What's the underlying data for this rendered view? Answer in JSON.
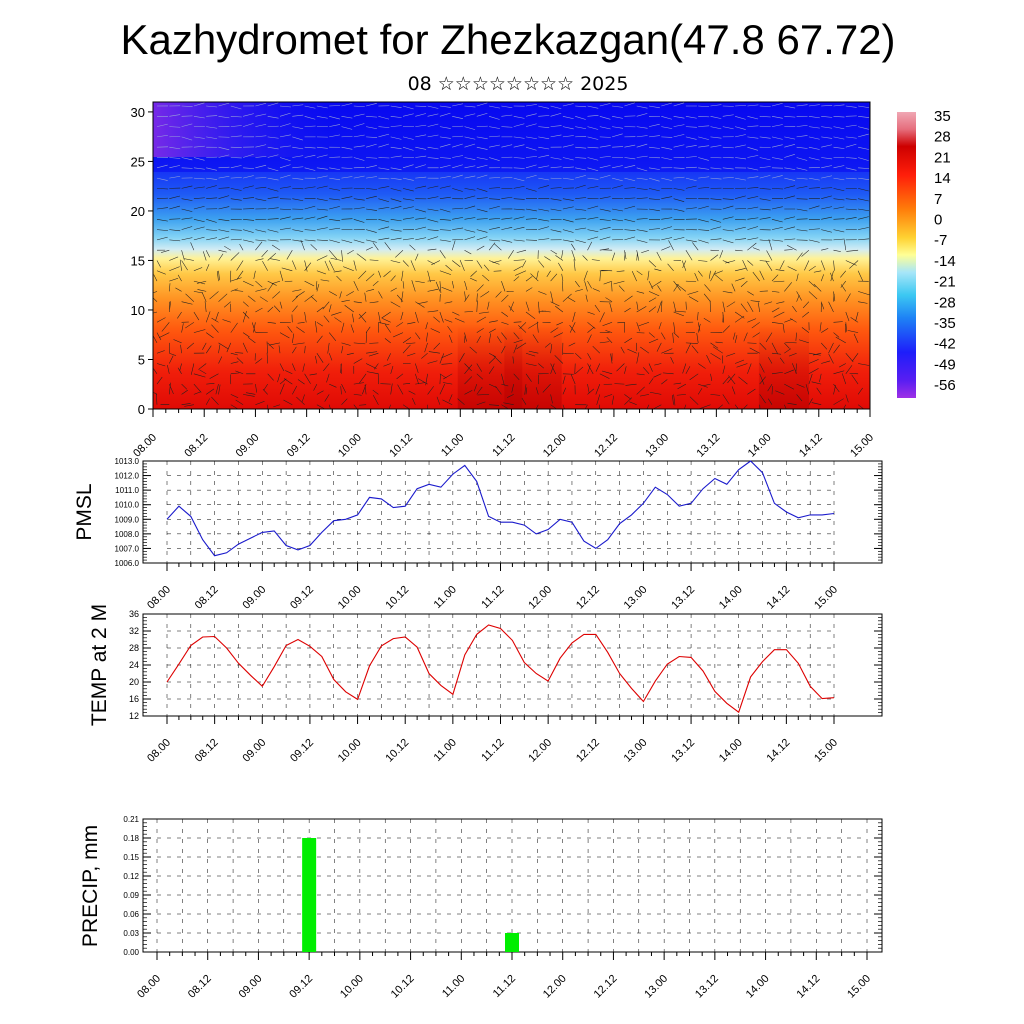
{
  "title": "Kazhydromet for Zhezkazgan(47.8 67.72)",
  "subtitle": "08 ☆☆☆☆☆☆☆☆ 2025",
  "time_labels": [
    "08.00",
    "08.12",
    "09.00",
    "09.12",
    "10.00",
    "10.12",
    "11.00",
    "11.12",
    "12.00",
    "12.12",
    "13.00",
    "13.12",
    "14.00",
    "14.12",
    "15.00"
  ],
  "chart_data": [
    {
      "type": "heatmap",
      "name": "temperature-wind-cross-section",
      "xlabel": "",
      "ylabel": "",
      "ylim": [
        0,
        31
      ],
      "y_ticks": [
        0,
        5,
        10,
        15,
        20,
        25,
        30
      ],
      "colorbar": {
        "labels": [
          "35",
          "28",
          "21",
          "14",
          "7",
          "0",
          "-7",
          "-14",
          "-21",
          "-28",
          "-35",
          "-42",
          "-49",
          "-56"
        ],
        "range": [
          -63,
          39
        ]
      },
      "overlay": "wind vectors"
    },
    {
      "type": "line",
      "ylabel": "PMSL",
      "ylim": [
        1006.0,
        1013.0
      ],
      "y_ticks": [
        "1006.0",
        "1007.0",
        "1008.0",
        "1009.0",
        "1010.0",
        "1011.0",
        "1012.0",
        "1013.0"
      ],
      "series_color": "#1a1acc",
      "values": [
        1009.0,
        1009.9,
        1009.2,
        1007.6,
        1006.5,
        1006.7,
        1007.3,
        1007.7,
        1008.1,
        1008.2,
        1007.2,
        1006.9,
        1007.2,
        1008.1,
        1008.9,
        1009.0,
        1009.3,
        1010.5,
        1010.4,
        1009.8,
        1009.9,
        1011.1,
        1011.4,
        1011.2,
        1012.1,
        1012.7,
        1011.6,
        1009.2,
        1008.8,
        1008.8,
        1008.6,
        1008.0,
        1008.3,
        1009.0,
        1008.8,
        1007.5,
        1007.0,
        1007.6,
        1008.7,
        1009.3,
        1010.1,
        1011.2,
        1010.7,
        1009.9,
        1010.1,
        1011.1,
        1011.8,
        1011.4,
        1012.4,
        1013.0,
        1012.2,
        1010.1,
        1009.5,
        1009.1,
        1009.3,
        1009.3,
        1009.4
      ]
    },
    {
      "type": "line",
      "ylabel": "TEMP at 2 M",
      "ylim": [
        12,
        36
      ],
      "y_ticks": [
        "12",
        "16",
        "20",
        "24",
        "28",
        "32",
        "36"
      ],
      "series_color": "#dd0000",
      "values": [
        20.0,
        24.2,
        28.6,
        30.6,
        30.7,
        28.0,
        24.4,
        21.6,
        19.0,
        23.6,
        28.6,
        30.0,
        28.4,
        26.0,
        20.6,
        17.7,
        15.9,
        23.8,
        28.5,
        30.2,
        30.6,
        28.2,
        22.0,
        19.2,
        17.1,
        26.4,
        31.2,
        33.4,
        32.6,
        29.8,
        24.6,
        22.0,
        20.2,
        25.6,
        29.2,
        31.2,
        31.2,
        27.0,
        22.0,
        18.5,
        15.4,
        20.2,
        24.2,
        26.0,
        25.8,
        22.6,
        17.8,
        15.0,
        12.9,
        21.2,
        24.8,
        27.6,
        27.6,
        24.4,
        19.0,
        16.1,
        16.3
      ]
    },
    {
      "type": "bar",
      "ylabel": "PRECIP, mm",
      "ylim": [
        0,
        0.21
      ],
      "y_ticks": [
        "0.00",
        "0.03",
        "0.06",
        "0.09",
        "0.12",
        "0.15",
        "0.18",
        "0.21"
      ],
      "bar_color": "#00ee00",
      "bars": [
        {
          "time": "09.12",
          "value": 0.18
        },
        {
          "time": "11.12",
          "value": 0.03
        }
      ]
    }
  ]
}
